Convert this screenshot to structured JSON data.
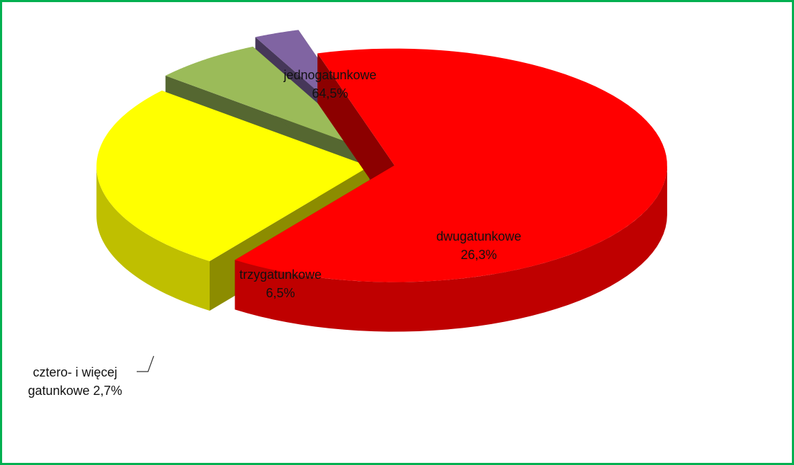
{
  "chart_data": {
    "type": "pie",
    "categories": [
      "jednogatunkowe",
      "dwugatunkowe",
      "trzygatunkowe",
      "cztero- i więcej gatunkowe"
    ],
    "values": [
      64.5,
      26.3,
      6.5,
      2.7
    ],
    "value_labels": [
      "64,5%",
      "26,3%",
      "6,5%",
      "2,7%"
    ],
    "colors": [
      "#ff0000",
      "#ffff00",
      "#9bbb59",
      "#8064a2"
    ]
  }
}
